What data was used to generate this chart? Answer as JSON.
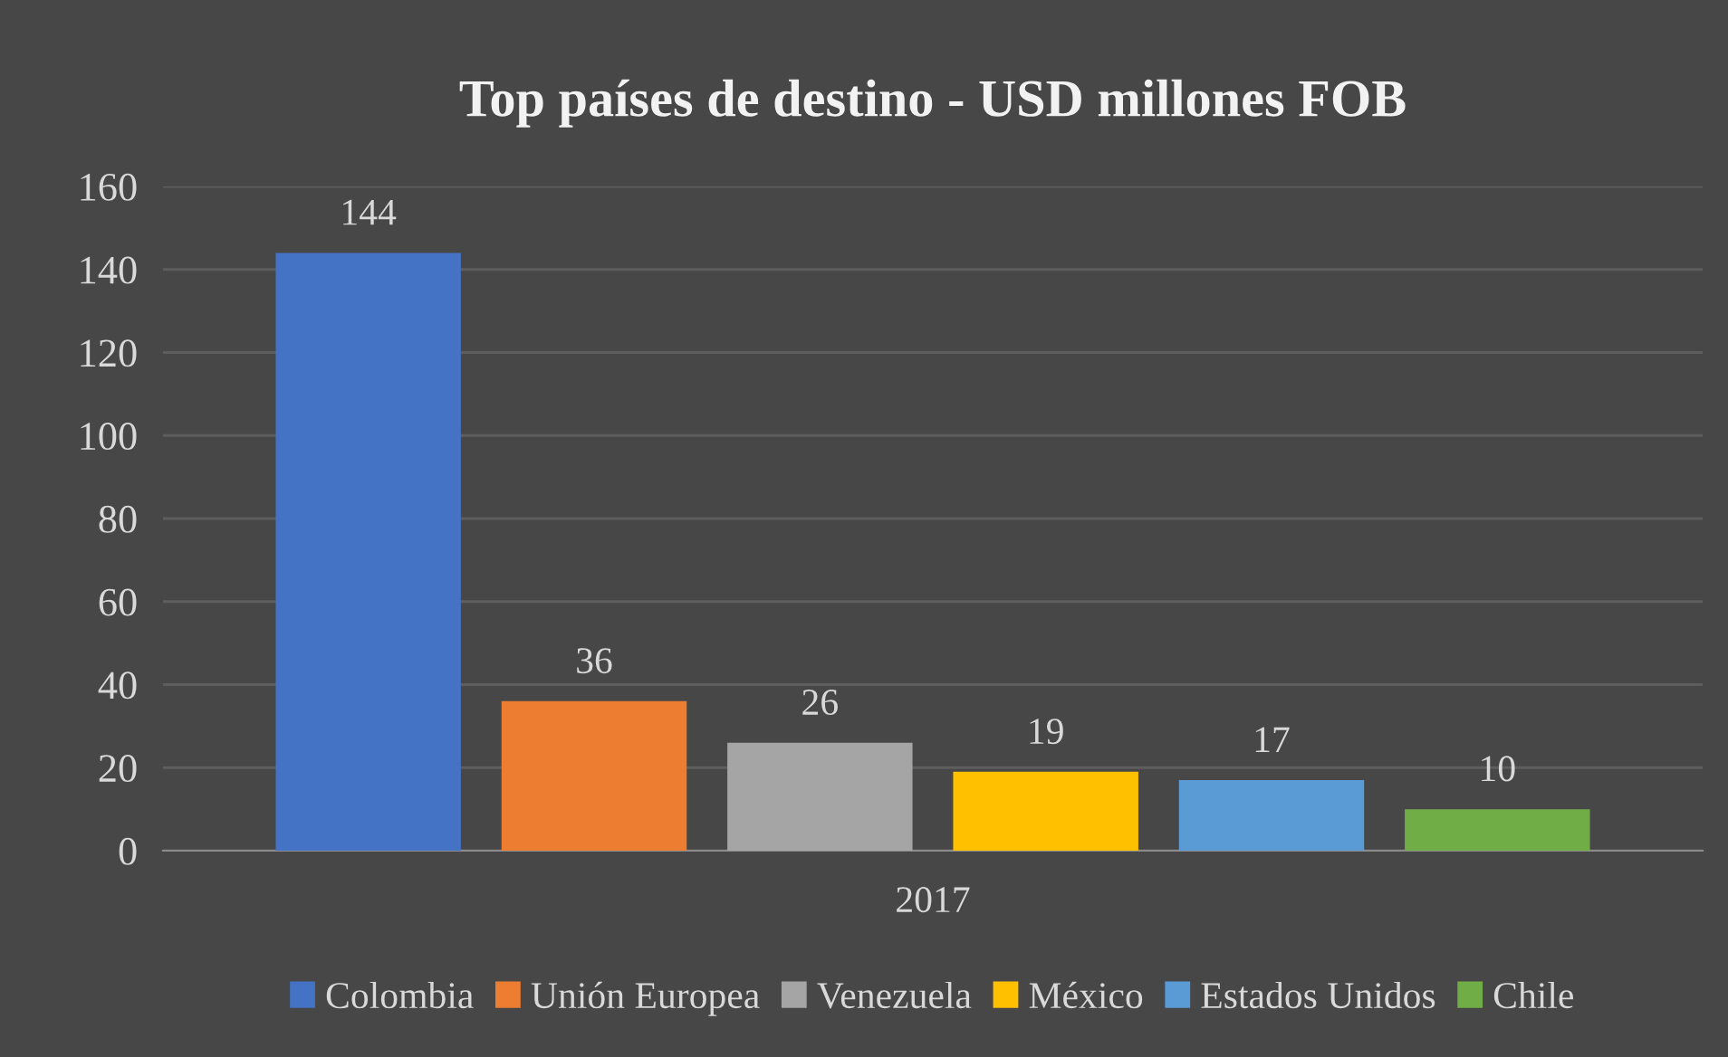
{
  "chart_data": {
    "type": "bar",
    "title": "Top países de destino - USD millones FOB",
    "categories": [
      "2017"
    ],
    "series": [
      {
        "name": "Colombia",
        "color": "#4472c4",
        "values": [
          144
        ]
      },
      {
        "name": "Unión Europea",
        "color": "#ed7d31",
        "values": [
          36
        ]
      },
      {
        "name": "Venezuela",
        "color": "#a5a5a5",
        "values": [
          26
        ]
      },
      {
        "name": "México",
        "color": "#ffc000",
        "values": [
          19
        ]
      },
      {
        "name": "Estados Unidos",
        "color": "#5b9bd5",
        "values": [
          17
        ]
      },
      {
        "name": "Chile",
        "color": "#70ad47",
        "values": [
          10
        ]
      }
    ],
    "ylim": [
      0,
      160
    ],
    "yticks": [
      0,
      20,
      40,
      60,
      80,
      100,
      120,
      140,
      160
    ],
    "grid": "y",
    "legend": "bottom",
    "data_labels": true
  }
}
